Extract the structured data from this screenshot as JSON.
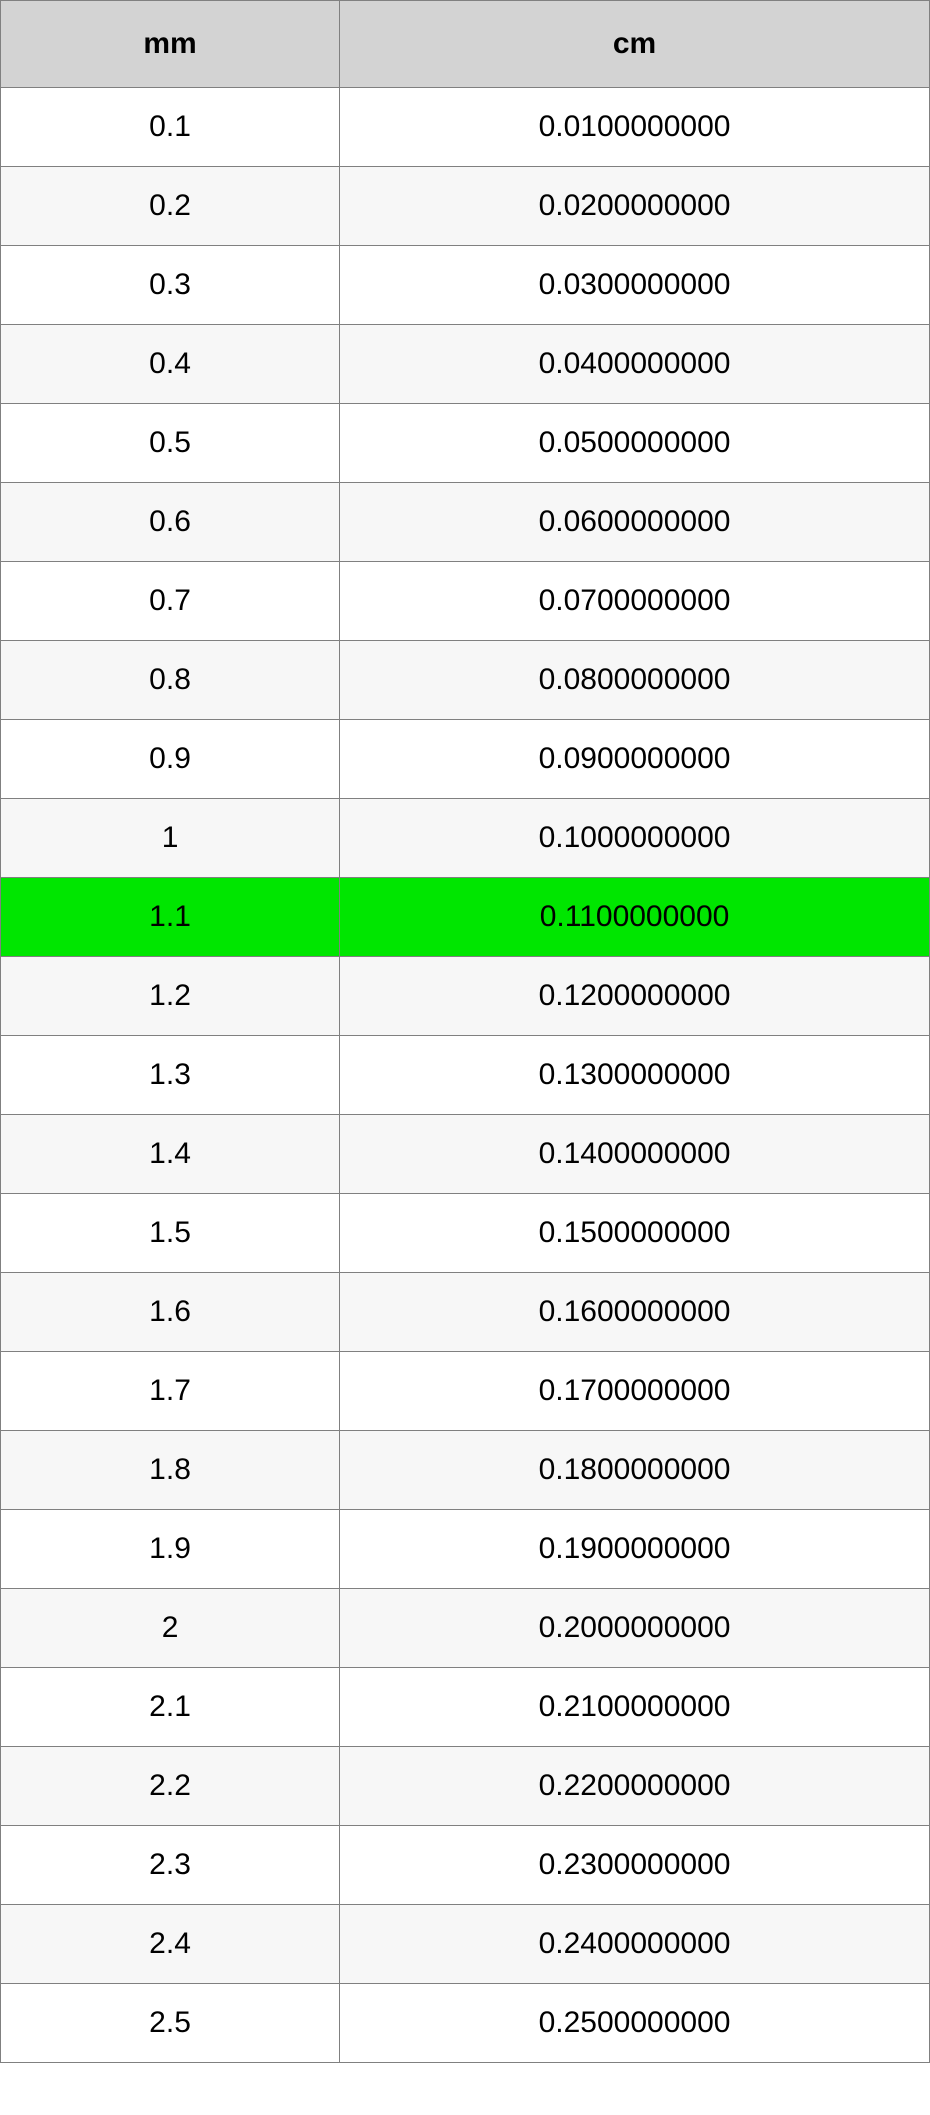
{
  "table": {
    "columns": [
      "mm",
      "cm"
    ],
    "header_bg": "#d3d3d3",
    "border_color": "#808080",
    "alt_row_bg": "#f7f7f7",
    "highlight_bg": "#00e600",
    "font_size": 30,
    "highlight_index": 10,
    "rows": [
      {
        "mm": "0.1",
        "cm": "0.0100000000"
      },
      {
        "mm": "0.2",
        "cm": "0.0200000000"
      },
      {
        "mm": "0.3",
        "cm": "0.0300000000"
      },
      {
        "mm": "0.4",
        "cm": "0.0400000000"
      },
      {
        "mm": "0.5",
        "cm": "0.0500000000"
      },
      {
        "mm": "0.6",
        "cm": "0.0600000000"
      },
      {
        "mm": "0.7",
        "cm": "0.0700000000"
      },
      {
        "mm": "0.8",
        "cm": "0.0800000000"
      },
      {
        "mm": "0.9",
        "cm": "0.0900000000"
      },
      {
        "mm": "1",
        "cm": "0.1000000000"
      },
      {
        "mm": "1.1",
        "cm": "0.1100000000"
      },
      {
        "mm": "1.2",
        "cm": "0.1200000000"
      },
      {
        "mm": "1.3",
        "cm": "0.1300000000"
      },
      {
        "mm": "1.4",
        "cm": "0.1400000000"
      },
      {
        "mm": "1.5",
        "cm": "0.1500000000"
      },
      {
        "mm": "1.6",
        "cm": "0.1600000000"
      },
      {
        "mm": "1.7",
        "cm": "0.1700000000"
      },
      {
        "mm": "1.8",
        "cm": "0.1800000000"
      },
      {
        "mm": "1.9",
        "cm": "0.1900000000"
      },
      {
        "mm": "2",
        "cm": "0.2000000000"
      },
      {
        "mm": "2.1",
        "cm": "0.2100000000"
      },
      {
        "mm": "2.2",
        "cm": "0.2200000000"
      },
      {
        "mm": "2.3",
        "cm": "0.2300000000"
      },
      {
        "mm": "2.4",
        "cm": "0.2400000000"
      },
      {
        "mm": "2.5",
        "cm": "0.2500000000"
      }
    ]
  }
}
